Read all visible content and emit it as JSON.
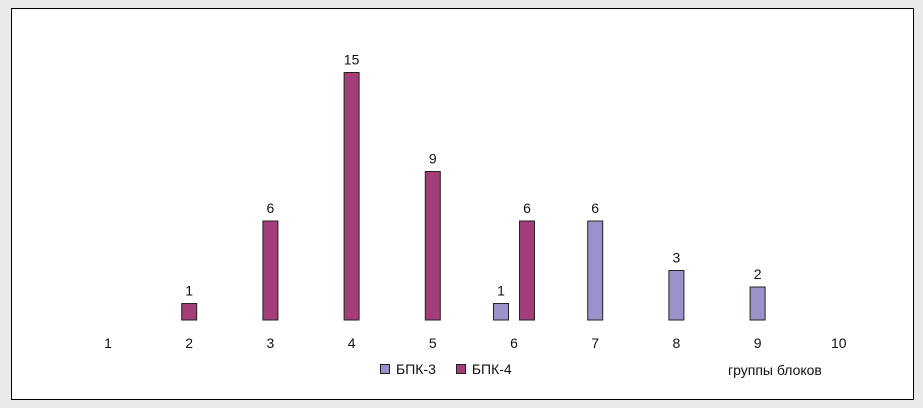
{
  "chart_data": {
    "type": "bar",
    "categories": [
      "1",
      "2",
      "3",
      "4",
      "5",
      "6",
      "7",
      "8",
      "9",
      "10"
    ],
    "series": [
      {
        "name": "БПК-3",
        "color": "#9c92c9",
        "values": [
          null,
          null,
          null,
          null,
          null,
          1,
          6,
          3,
          2,
          null
        ]
      },
      {
        "name": "БПК-4",
        "color": "#a43e79",
        "values": [
          null,
          1,
          6,
          15,
          9,
          6,
          null,
          null,
          null,
          null
        ]
      }
    ],
    "xlabel": "группы блоков",
    "ylim": [
      0,
      15
    ],
    "grid": false,
    "legend_position": "bottom"
  }
}
